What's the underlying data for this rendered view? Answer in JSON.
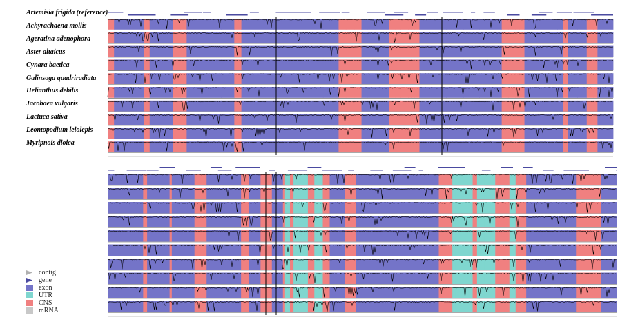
{
  "species": [
    "Artemisia frigida (reference)",
    "Achyrachaena mollis",
    "Ageratina adenophora",
    "Aster altaicus",
    "Cynara baetica",
    "Galinsoga quadriradiata",
    "Helianthus debilis",
    "Jacobaea vulgaris",
    "Lactuca sativa",
    "Leontopodium leiolepis",
    "Myripnois dioica"
  ],
  "legend": [
    {
      "label": "contig",
      "color": "#b0b0b0",
      "icon": "arrow-contig-icon"
    },
    {
      "label": "gene",
      "color": "#4a4aa0",
      "icon": "arrow-gene-icon"
    },
    {
      "label": "exon",
      "color": "#7474c8",
      "icon": "exon-swatch"
    },
    {
      "label": "UTR",
      "color": "#7fd6cf",
      "icon": "utr-swatch"
    },
    {
      "label": "CNS",
      "color": "#f08080",
      "icon": "cns-swatch"
    },
    {
      "label": "mRNA",
      "color": "#c8c8c8",
      "icon": "mrna-swatch"
    }
  ],
  "colors": {
    "exon": "#7474c8",
    "utr": "#7fd6cf",
    "cns": "#f08080",
    "trace": "#000000"
  }
}
